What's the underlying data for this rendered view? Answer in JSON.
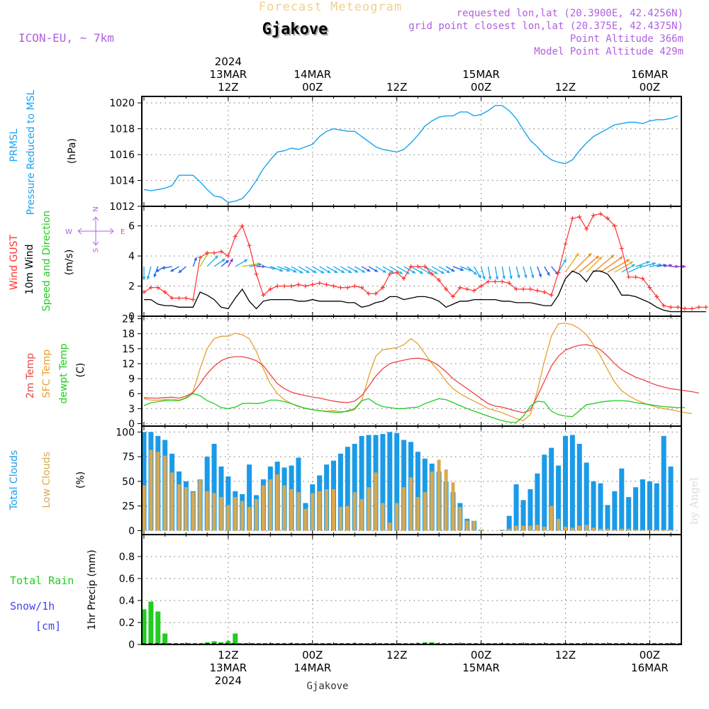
{
  "header": {
    "title_top": "Forecast Meteogram",
    "location": "Gjakove",
    "model": "ICON-EU, ~ 7km",
    "requested": "requested lon,lat (20.3900E, 42.4256N)",
    "grid_point": "grid point closest lon,lat (20.375E, 42.4375N)",
    "point_alt": "Point Altitude 366m",
    "model_alt": "Model Point Altitude 429m",
    "watermark": "by Angel",
    "footer_location": "Gjakove"
  },
  "time_axis": {
    "top_labels": [
      {
        "lines": [
          "2024",
          "13MAR",
          "12Z"
        ],
        "hour": 12
      },
      {
        "lines": [
          "14MAR",
          "00Z"
        ],
        "hour": 24
      },
      {
        "lines": [
          "12Z"
        ],
        "hour": 36
      },
      {
        "lines": [
          "15MAR",
          "00Z"
        ],
        "hour": 48
      },
      {
        "lines": [
          "12Z"
        ],
        "hour": 60
      },
      {
        "lines": [
          "16MAR",
          "00Z"
        ],
        "hour": 72
      }
    ],
    "bottom_labels": [
      {
        "lines": [
          "12Z",
          "13MAR",
          "2024"
        ],
        "hour": 12
      },
      {
        "lines": [
          "00Z",
          "14MAR"
        ],
        "hour": 24
      },
      {
        "lines": [
          "12Z"
        ],
        "hour": 36
      },
      {
        "lines": [
          "00Z",
          "15MAR"
        ],
        "hour": 48
      },
      {
        "lines": [
          "12Z"
        ],
        "hour": 60
      },
      {
        "lines": [
          "00Z",
          "16MAR"
        ],
        "hour": 72
      }
    ],
    "range": [
      -0.3,
      76.5
    ],
    "step_hours": 1
  },
  "colors": {
    "pressure": "#1aa3f0",
    "gust": "#ff3030",
    "wind10": "#000000",
    "t2m": "#ee4444",
    "sfc": "#e8a030",
    "dew": "#22cc22",
    "total_cloud": "#1a9be8",
    "low_cloud": "#d9a850",
    "rain": "#22cc22",
    "snow": "#4444ee",
    "purple": "#b060e0",
    "grid": "#888888"
  },
  "chart_data": [
    {
      "id": "pressure",
      "type": "line",
      "ylabels": [
        "PRMSL",
        "Pressure Reduced to MSL",
        "(hPa)"
      ],
      "ylim": [
        1012,
        1020.5
      ],
      "yticks": [
        1012,
        1014,
        1016,
        1018,
        1020
      ],
      "series": [
        {
          "name": "PRMSL",
          "values": [
            1013.3,
            1013.2,
            1013.3,
            1013.4,
            1013.6,
            1014.4,
            1014.4,
            1014.4,
            1013.9,
            1013.3,
            1012.8,
            1012.7,
            1012.3,
            1012.4,
            1012.6,
            1013.2,
            1014.0,
            1014.9,
            1015.6,
            1016.2,
            1016.3,
            1016.5,
            1016.4,
            1016.6,
            1016.8,
            1017.4,
            1017.8,
            1018.0,
            1017.9,
            1017.8,
            1017.8,
            1017.4,
            1017.0,
            1016.6,
            1016.4,
            1016.3,
            1016.2,
            1016.4,
            1016.9,
            1017.5,
            1018.2,
            1018.6,
            1018.9,
            1019.0,
            1019.0,
            1019.3,
            1019.3,
            1019.0,
            1019.1,
            1019.4,
            1019.8,
            1019.8,
            1019.4,
            1018.8,
            1017.9,
            1017.1,
            1016.6,
            1016.0,
            1015.6,
            1015.4,
            1015.3,
            1015.6,
            1016.3,
            1016.9,
            1017.4,
            1017.7,
            1018.0,
            1018.3,
            1018.4,
            1018.5,
            1018.5,
            1018.4,
            1018.6,
            1018.7,
            1018.7,
            1018.8,
            1019.0
          ]
        }
      ]
    },
    {
      "id": "wind",
      "type": "line",
      "ylabels": [
        "Wind GUST",
        "10m Wind",
        "Speed and Direction",
        "(m/s)"
      ],
      "ylim": [
        0,
        7.3
      ],
      "yticks": [
        0,
        2,
        4,
        6
      ],
      "compass": [
        "N",
        "E",
        "S",
        "W"
      ],
      "series": [
        {
          "name": "Wind GUST",
          "values": [
            1.6,
            1.9,
            1.9,
            1.6,
            1.2,
            1.2,
            1.2,
            1.1,
            3.9,
            4.2,
            4.2,
            4.3,
            4.0,
            5.3,
            6.0,
            4.7,
            2.8,
            1.4,
            1.8,
            2.0,
            2.0,
            2.0,
            2.1,
            2.0,
            2.1,
            2.2,
            2.1,
            2.0,
            1.9,
            1.9,
            2.0,
            1.9,
            1.5,
            1.5,
            1.9,
            2.8,
            2.9,
            2.5,
            3.3,
            3.3,
            3.3,
            2.8,
            2.4,
            1.8,
            1.3,
            1.9,
            1.8,
            1.7,
            2.0,
            2.3,
            2.3,
            2.3,
            2.2,
            1.8,
            1.8,
            1.8,
            1.7,
            1.6,
            1.4,
            2.9,
            4.8,
            6.5,
            6.6,
            5.8,
            6.7,
            6.8,
            6.5,
            6.0,
            4.5,
            2.6,
            2.6,
            2.5,
            1.9,
            1.3,
            0.7,
            0.6,
            0.6,
            0.5,
            0.5,
            0.6,
            0.6
          ]
        },
        {
          "name": "10m Wind",
          "values": [
            1.1,
            1.1,
            0.8,
            0.7,
            0.7,
            0.6,
            0.6,
            0.6,
            1.6,
            1.4,
            1.1,
            0.6,
            0.5,
            1.2,
            1.8,
            1.0,
            0.5,
            1.0,
            1.1,
            1.1,
            1.1,
            1.1,
            1.0,
            1.0,
            1.1,
            1.0,
            1.0,
            1.0,
            1.0,
            0.9,
            0.9,
            0.6,
            0.7,
            0.9,
            1.0,
            1.3,
            1.3,
            1.1,
            1.2,
            1.3,
            1.3,
            1.2,
            1.0,
            0.6,
            0.8,
            1.0,
            1.0,
            1.1,
            1.1,
            1.1,
            1.1,
            1.0,
            1.0,
            0.9,
            0.9,
            0.9,
            0.8,
            0.7,
            0.7,
            1.4,
            2.5,
            3.0,
            2.8,
            2.3,
            3.0,
            3.0,
            2.8,
            2.2,
            1.4,
            1.4,
            1.3,
            1.1,
            0.9,
            0.6,
            0.4,
            0.3,
            0.3,
            0.3,
            0.3,
            0.3,
            0.3
          ]
        }
      ],
      "wind_dirs_deg": [
        360,
        15,
        20,
        60,
        80,
        60,
        50,
        200,
        210,
        225,
        235,
        230,
        210,
        240,
        260,
        260,
        270,
        280,
        290,
        290,
        295,
        300,
        300,
        300,
        300,
        300,
        300,
        300,
        300,
        300,
        300,
        300,
        300,
        300,
        300,
        300,
        300,
        300,
        300,
        300,
        300,
        300,
        300,
        300,
        290,
        290,
        310,
        330,
        345,
        350,
        350,
        350,
        350,
        345,
        345,
        345,
        340,
        330,
        320,
        210,
        215,
        225,
        230,
        225,
        230,
        235,
        240,
        240,
        240,
        245,
        250,
        255,
        260,
        260,
        260,
        270,
        270,
        270,
        270,
        270,
        270
      ],
      "arrow_start_hour": 0,
      "arrow_end_hour": 76
    },
    {
      "id": "temperature",
      "type": "line",
      "ylabels": [
        "2m Temp",
        "SFC Temp",
        "dewpt Temp",
        "(C)"
      ],
      "ylim": [
        -0.5,
        21.5
      ],
      "yticks": [
        0,
        3,
        6,
        9,
        12,
        15,
        18,
        21
      ],
      "series": [
        {
          "name": "2m Temp",
          "values": [
            5.2,
            5.1,
            5.1,
            5.2,
            5.3,
            5.1,
            5.5,
            6.2,
            8.0,
            10.0,
            11.5,
            12.6,
            13.2,
            13.4,
            13.4,
            13.1,
            12.6,
            11.6,
            9.8,
            8.0,
            7.0,
            6.3,
            5.9,
            5.6,
            5.3,
            5.1,
            4.8,
            4.5,
            4.3,
            4.2,
            4.5,
            5.6,
            7.5,
            9.5,
            11.0,
            12.0,
            12.4,
            12.7,
            13.0,
            13.1,
            12.9,
            12.4,
            11.6,
            10.4,
            9.0,
            8.0,
            7.0,
            6.0,
            5.0,
            4.0,
            3.5,
            3.3,
            2.9,
            2.5,
            2.2,
            2.7,
            5.5,
            8.5,
            11.5,
            13.5,
            14.7,
            15.3,
            15.7,
            15.8,
            15.5,
            14.8,
            13.5,
            12.0,
            10.8,
            10.0,
            9.3,
            8.8,
            8.2,
            7.7,
            7.3,
            7.0,
            6.8,
            6.6,
            6.4,
            6.1
          ]
        },
        {
          "name": "SFC Temp",
          "values": [
            5.0,
            4.7,
            4.7,
            4.8,
            4.9,
            4.7,
            5.2,
            6.4,
            11.0,
            15.0,
            17.0,
            17.5,
            17.5,
            18.1,
            17.8,
            17.0,
            14.5,
            11.0,
            8.0,
            6.0,
            4.8,
            4.0,
            3.4,
            3.1,
            2.8,
            2.6,
            2.5,
            2.6,
            2.4,
            2.4,
            2.8,
            4.5,
            9.5,
            13.5,
            14.8,
            15.0,
            15.2,
            15.8,
            17.0,
            16.0,
            14.0,
            12.0,
            10.5,
            8.5,
            7.0,
            6.0,
            5.2,
            4.5,
            3.8,
            3.0,
            2.6,
            2.2,
            1.6,
            1.0,
            0.6,
            1.8,
            6.5,
            12.5,
            17.5,
            20.0,
            20.1,
            19.8,
            19.0,
            17.8,
            15.8,
            13.5,
            10.8,
            8.3,
            6.6,
            5.6,
            4.8,
            4.2,
            3.7,
            3.3,
            3.0,
            2.8,
            2.5,
            2.2,
            2.0
          ]
        },
        {
          "name": "dewpt Temp",
          "values": [
            3.6,
            4.2,
            4.4,
            4.6,
            4.6,
            4.6,
            5.1,
            6.0,
            5.6,
            4.6,
            4.0,
            3.2,
            3.0,
            3.3,
            4.0,
            4.1,
            4.0,
            4.2,
            4.7,
            4.7,
            4.4,
            4.0,
            3.5,
            3.0,
            2.8,
            2.6,
            2.4,
            2.3,
            2.2,
            2.6,
            3.0,
            4.6,
            5.0,
            4.0,
            3.4,
            3.2,
            3.0,
            3.0,
            3.2,
            3.3,
            4.0,
            4.5,
            5.0,
            4.8,
            4.2,
            3.6,
            3.0,
            2.5,
            2.0,
            1.5,
            1.0,
            0.6,
            0.3,
            0.2,
            1.5,
            3.5,
            4.5,
            4.3,
            2.5,
            1.8,
            1.5,
            1.4,
            2.6,
            3.8,
            4.0,
            4.3,
            4.5,
            4.6,
            4.6,
            4.5,
            4.2,
            4.0,
            3.8,
            3.6,
            3.4,
            3.3,
            3.2,
            3.2
          ]
        }
      ]
    },
    {
      "id": "clouds",
      "type": "bar",
      "ylabels": [
        "Total Clouds",
        "Low Clouds",
        "(%)"
      ],
      "ylim": [
        -4,
        106
      ],
      "yticks": [
        0,
        25,
        50,
        75,
        100
      ],
      "series": [
        {
          "name": "Total Clouds",
          "values": [
            100,
            100,
            96,
            92,
            78,
            60,
            50,
            40,
            52,
            75,
            88,
            65,
            55,
            40,
            37,
            67,
            36,
            52,
            65,
            70,
            64,
            66,
            74,
            28,
            47,
            56,
            67,
            71,
            78,
            85,
            88,
            96,
            97,
            97,
            98,
            100,
            99,
            92,
            90,
            80,
            73,
            68,
            60,
            50,
            39,
            28,
            12,
            10,
            1,
            0,
            0,
            1,
            15,
            47,
            31,
            42,
            58,
            77,
            84,
            66,
            96,
            97,
            88,
            69,
            50,
            48,
            26,
            40,
            63,
            34,
            44,
            52,
            50,
            48,
            96,
            65
          ]
        },
        {
          "name": "Low Clouds",
          "values": [
            46,
            82,
            80,
            76,
            59,
            47,
            44,
            39,
            52,
            40,
            38,
            34,
            26,
            34,
            30,
            24,
            32,
            46,
            52,
            57,
            46,
            42,
            39,
            22,
            38,
            40,
            42,
            42,
            24,
            25,
            39,
            32,
            44,
            59,
            28,
            8,
            28,
            44,
            54,
            34,
            39,
            60,
            72,
            62,
            49,
            24,
            10,
            10,
            1,
            0,
            0,
            1,
            2,
            5,
            5,
            5,
            6,
            4,
            25,
            12,
            4,
            3,
            5,
            6,
            3,
            2,
            2,
            1,
            2,
            2,
            1,
            1,
            1,
            1,
            1,
            1
          ]
        }
      ]
    },
    {
      "id": "precip",
      "type": "bar",
      "ylabels": [
        "1hr Precip (mm)"
      ],
      "left_labels": [
        "Total  Rain",
        "Snow/1h",
        "[cm]"
      ],
      "ylim": [
        0,
        1.0
      ],
      "yticks": [
        0,
        0.2,
        0.4,
        0.6,
        0.8
      ],
      "ytick_labels": [
        "0",
        "0.2",
        "0.4",
        "0.6",
        "0.8"
      ],
      "series": [
        {
          "name": "Total Rain",
          "values": [
            0.32,
            0.39,
            0.3,
            0.1,
            0,
            0,
            0,
            0,
            0,
            0.02,
            0.03,
            0.02,
            0.03,
            0.1,
            0.01,
            0,
            0,
            0,
            0,
            0,
            0,
            0,
            0,
            0,
            0,
            0,
            0,
            0,
            0,
            0,
            0,
            0,
            0,
            0,
            0,
            0,
            0,
            0,
            0,
            0.01,
            0.02,
            0.02,
            0,
            0,
            0,
            0,
            0,
            0,
            0,
            0,
            0,
            0,
            0,
            0,
            0,
            0,
            0,
            0,
            0,
            0,
            0,
            0,
            0,
            0,
            0,
            0,
            0,
            0,
            0,
            0,
            0,
            0,
            0,
            0,
            0,
            0
          ]
        }
      ]
    }
  ]
}
